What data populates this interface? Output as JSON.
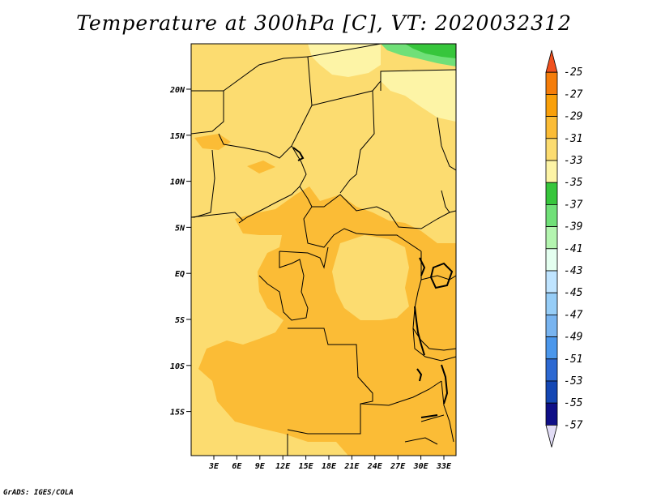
{
  "title": "Temperature at 300hPa [C], VT: 2020032312",
  "footer": "GrADS: IGES/COLA",
  "map": {
    "lat_ticks": [
      "20N",
      "15N",
      "10N",
      "5N",
      "EQ",
      "5S",
      "10S",
      "15S"
    ],
    "lon_ticks": [
      "3E",
      "6E",
      "9E",
      "12E",
      "15E",
      "18E",
      "21E",
      "24E",
      "27E",
      "30E",
      "33E"
    ]
  },
  "colorbar": {
    "labels": [
      "-25",
      "-27",
      "-29",
      "-31",
      "-33",
      "-35",
      "-37",
      "-39",
      "-41",
      "-43",
      "-45",
      "-47",
      "-49",
      "-51",
      "-53",
      "-55",
      "-57"
    ],
    "colors": [
      "#f0501e",
      "#f57d0a",
      "#f9a00a",
      "#fbbc36",
      "#fcdc70",
      "#fdf4a6",
      "#37c63c",
      "#70e078",
      "#b4f5b0",
      "#e4fff0",
      "#bfe4ff",
      "#96cdf7",
      "#78b4f0",
      "#4b97eb",
      "#2d69d2",
      "#1447b4",
      "#0f0f87",
      "#e1dcf5"
    ]
  },
  "colors": {
    "bg_field": "#fcdc70",
    "warm_field": "#fbbc36",
    "cool_field": "#fdf4a6",
    "green": "#37c63c",
    "light_green": "#70e078"
  }
}
